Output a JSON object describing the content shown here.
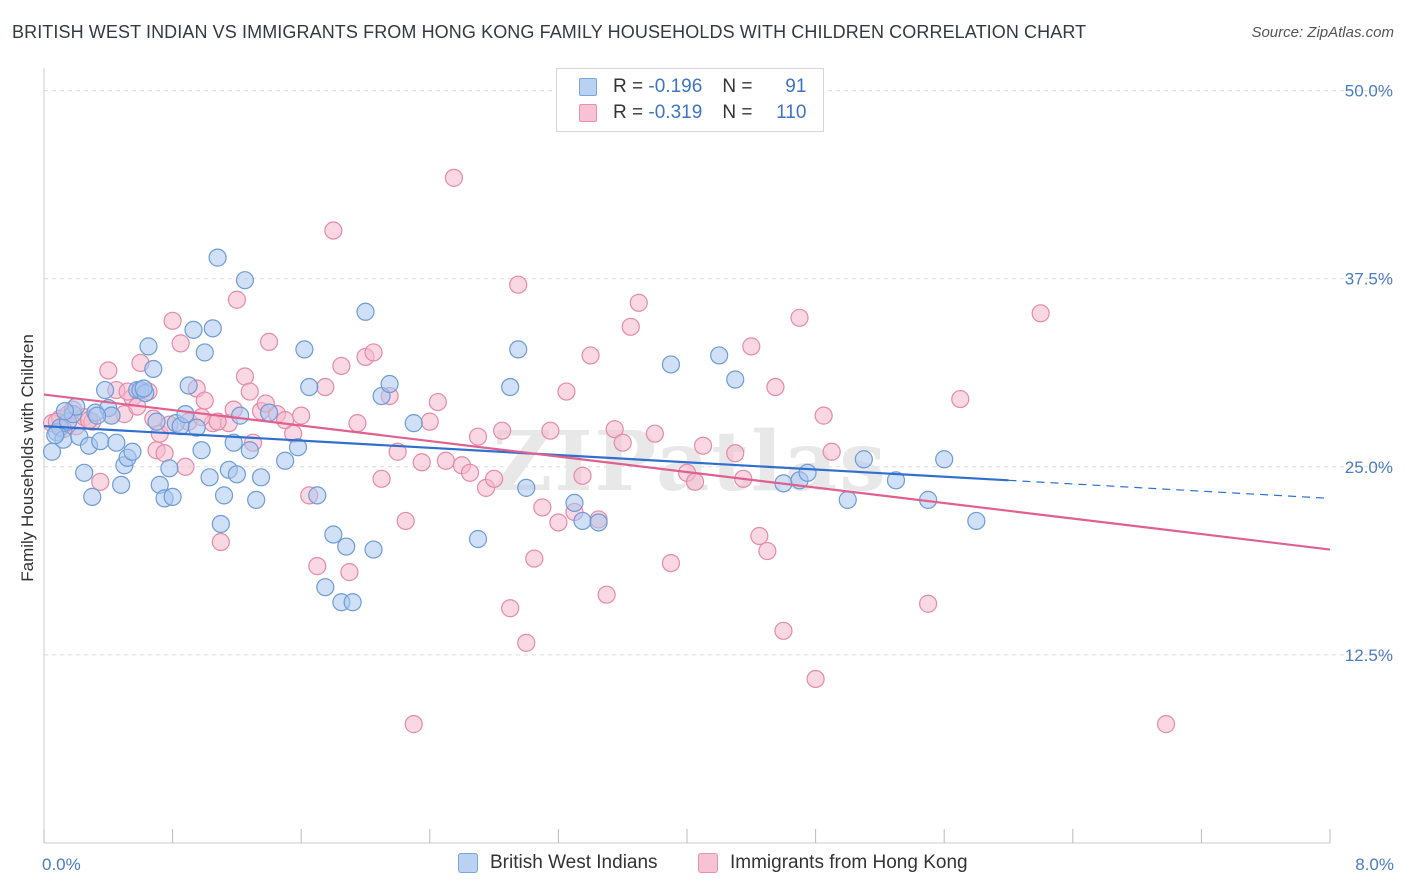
{
  "title": "BRITISH WEST INDIAN VS IMMIGRANTS FROM HONG KONG FAMILY HOUSEHOLDS WITH CHILDREN CORRELATION CHART",
  "source": "Source: ZipAtlas.com",
  "watermark": "ZIPatlas",
  "legend": {
    "rows": [
      {
        "r_label": "R =",
        "r_value": "-0.196",
        "n_label": "N =",
        "n_value": "91"
      },
      {
        "r_label": "R =",
        "r_value": "-0.319",
        "n_label": "N =",
        "n_value": "110"
      }
    ]
  },
  "bottom_legend": [
    "British West Indians",
    "Immigrants from Hong Kong"
  ],
  "colors": {
    "blue_fill": "#aac7ee",
    "blue_stroke": "#6f9bd6",
    "blue_line": "#2f6fcf",
    "pink_fill": "#f5b8cc",
    "pink_stroke": "#e58aa8",
    "pink_line": "#e0608f",
    "tick_text": "#4a7cc4",
    "grid": "#dcdcdc"
  },
  "chart_data": {
    "type": "scatter",
    "title": "BRITISH WEST INDIAN VS IMMIGRANTS FROM HONG KONG FAMILY HOUSEHOLDS WITH CHILDREN CORRELATION CHART",
    "xlabel": "",
    "ylabel": "Family Households with Children",
    "xlim": [
      0,
      8
    ],
    "ylim": [
      0,
      51.5
    ],
    "x_tick_labels": [
      "0.0%",
      "8.0%"
    ],
    "y_ticks": [
      12.5,
      25.0,
      37.5,
      50.0
    ],
    "y_tick_labels": [
      "12.5%",
      "25.0%",
      "37.5%",
      "50.0%"
    ],
    "grid": "horizontal dashed",
    "legend_position": "top-center",
    "series": [
      {
        "name": "British West Indians",
        "r": -0.196,
        "n": 91,
        "trend": {
          "x0": 0,
          "y0": 27.7,
          "x1": 6.0,
          "y1": 24.1,
          "dashed_to_x": 8.0,
          "dashed_to_y": 22.9
        },
        "points": [
          [
            0.05,
            26.0
          ],
          [
            0.08,
            27.3
          ],
          [
            0.1,
            27.6
          ],
          [
            0.12,
            26.8
          ],
          [
            0.15,
            28.0
          ],
          [
            0.18,
            28.5
          ],
          [
            0.2,
            29.0
          ],
          [
            0.22,
            27.0
          ],
          [
            0.25,
            24.6
          ],
          [
            0.28,
            26.4
          ],
          [
            0.3,
            23.0
          ],
          [
            0.32,
            28.6
          ],
          [
            0.35,
            26.7
          ],
          [
            0.38,
            30.1
          ],
          [
            0.4,
            28.9
          ],
          [
            0.42,
            28.4
          ],
          [
            0.45,
            26.6
          ],
          [
            0.48,
            23.8
          ],
          [
            0.5,
            25.1
          ],
          [
            0.52,
            25.6
          ],
          [
            0.55,
            26.0
          ],
          [
            0.58,
            30.1
          ],
          [
            0.6,
            30.1
          ],
          [
            0.63,
            29.9
          ],
          [
            0.65,
            33.0
          ],
          [
            0.68,
            31.5
          ],
          [
            0.7,
            28.0
          ],
          [
            0.72,
            23.8
          ],
          [
            0.75,
            22.9
          ],
          [
            0.78,
            24.9
          ],
          [
            0.8,
            23.0
          ],
          [
            0.82,
            27.9
          ],
          [
            0.85,
            27.7
          ],
          [
            0.88,
            28.5
          ],
          [
            0.9,
            30.4
          ],
          [
            0.93,
            34.1
          ],
          [
            0.95,
            27.6
          ],
          [
            0.98,
            26.1
          ],
          [
            1.0,
            32.6
          ],
          [
            1.03,
            24.3
          ],
          [
            1.05,
            34.2
          ],
          [
            1.08,
            38.9
          ],
          [
            1.1,
            21.2
          ],
          [
            1.12,
            23.1
          ],
          [
            1.15,
            24.8
          ],
          [
            1.18,
            26.6
          ],
          [
            1.2,
            24.5
          ],
          [
            1.25,
            37.4
          ],
          [
            1.28,
            26.1
          ],
          [
            1.32,
            22.8
          ],
          [
            1.35,
            24.3
          ],
          [
            1.5,
            25.4
          ],
          [
            1.58,
            26.3
          ],
          [
            1.62,
            32.8
          ],
          [
            1.65,
            30.3
          ],
          [
            1.7,
            23.1
          ],
          [
            1.75,
            17.0
          ],
          [
            1.8,
            20.5
          ],
          [
            1.85,
            16.0
          ],
          [
            1.88,
            19.7
          ],
          [
            1.92,
            16.0
          ],
          [
            2.0,
            35.3
          ],
          [
            2.05,
            19.5
          ],
          [
            2.1,
            29.7
          ],
          [
            2.15,
            30.5
          ],
          [
            2.3,
            27.9
          ],
          [
            2.7,
            20.2
          ],
          [
            2.9,
            30.3
          ],
          [
            2.95,
            32.8
          ],
          [
            3.0,
            23.6
          ],
          [
            3.3,
            22.6
          ],
          [
            3.35,
            21.4
          ],
          [
            3.45,
            21.3
          ],
          [
            3.9,
            31.8
          ],
          [
            4.2,
            32.4
          ],
          [
            4.3,
            30.8
          ],
          [
            4.6,
            23.9
          ],
          [
            4.7,
            24.1
          ],
          [
            4.75,
            24.6
          ],
          [
            5.0,
            22.8
          ],
          [
            5.1,
            25.5
          ],
          [
            5.3,
            24.1
          ],
          [
            5.5,
            22.8
          ],
          [
            5.6,
            25.5
          ],
          [
            5.8,
            21.4
          ],
          [
            0.07,
            27.1
          ],
          [
            0.13,
            28.7
          ],
          [
            0.62,
            30.2
          ],
          [
            1.22,
            28.4
          ],
          [
            0.33,
            28.4
          ],
          [
            1.4,
            28.6
          ]
        ]
      },
      {
        "name": "Immigrants from Hong Kong",
        "r": -0.319,
        "n": 110,
        "trend": {
          "x0": 0,
          "y0": 29.8,
          "x1": 8.0,
          "y1": 19.5
        },
        "points": [
          [
            0.05,
            27.9
          ],
          [
            0.1,
            28.2
          ],
          [
            0.15,
            28.5
          ],
          [
            0.2,
            27.7
          ],
          [
            0.25,
            28.3
          ],
          [
            0.3,
            28.0
          ],
          [
            0.35,
            24.0
          ],
          [
            0.4,
            31.4
          ],
          [
            0.45,
            30.1
          ],
          [
            0.5,
            28.5
          ],
          [
            0.55,
            29.6
          ],
          [
            0.6,
            31.9
          ],
          [
            0.65,
            30.0
          ],
          [
            0.7,
            26.1
          ],
          [
            0.75,
            25.9
          ],
          [
            0.8,
            34.7
          ],
          [
            0.85,
            33.2
          ],
          [
            0.9,
            28.0
          ],
          [
            0.95,
            30.2
          ],
          [
            1.0,
            29.4
          ],
          [
            1.05,
            27.9
          ],
          [
            1.1,
            20.0
          ],
          [
            1.15,
            27.9
          ],
          [
            1.2,
            36.1
          ],
          [
            1.25,
            31.0
          ],
          [
            1.3,
            26.6
          ],
          [
            1.35,
            28.7
          ],
          [
            1.4,
            33.3
          ],
          [
            1.45,
            28.5
          ],
          [
            1.5,
            28.1
          ],
          [
            1.55,
            27.2
          ],
          [
            1.6,
            28.4
          ],
          [
            1.65,
            23.1
          ],
          [
            1.7,
            18.4
          ],
          [
            1.75,
            30.3
          ],
          [
            1.8,
            40.7
          ],
          [
            1.85,
            31.7
          ],
          [
            1.9,
            18.0
          ],
          [
            1.95,
            27.9
          ],
          [
            2.0,
            32.3
          ],
          [
            2.05,
            32.6
          ],
          [
            2.1,
            24.2
          ],
          [
            2.15,
            29.7
          ],
          [
            2.2,
            26.0
          ],
          [
            2.25,
            21.4
          ],
          [
            2.3,
            7.9
          ],
          [
            2.35,
            25.3
          ],
          [
            2.4,
            28.0
          ],
          [
            2.45,
            29.3
          ],
          [
            2.5,
            25.4
          ],
          [
            2.55,
            44.2
          ],
          [
            2.6,
            25.1
          ],
          [
            2.65,
            24.6
          ],
          [
            2.7,
            27.0
          ],
          [
            2.75,
            23.6
          ],
          [
            2.8,
            24.2
          ],
          [
            2.85,
            27.4
          ],
          [
            2.9,
            15.6
          ],
          [
            2.95,
            37.1
          ],
          [
            3.0,
            13.3
          ],
          [
            3.05,
            18.9
          ],
          [
            3.1,
            22.3
          ],
          [
            3.15,
            27.4
          ],
          [
            3.2,
            21.3
          ],
          [
            3.25,
            30.0
          ],
          [
            3.3,
            22.0
          ],
          [
            3.35,
            24.4
          ],
          [
            3.4,
            32.4
          ],
          [
            3.45,
            21.5
          ],
          [
            3.5,
            16.5
          ],
          [
            3.55,
            27.5
          ],
          [
            3.6,
            26.6
          ],
          [
            3.65,
            34.3
          ],
          [
            3.7,
            35.9
          ],
          [
            3.8,
            27.2
          ],
          [
            3.9,
            18.6
          ],
          [
            4.0,
            24.6
          ],
          [
            4.05,
            24.0
          ],
          [
            4.1,
            26.4
          ],
          [
            4.3,
            25.9
          ],
          [
            4.35,
            24.2
          ],
          [
            4.4,
            33.0
          ],
          [
            4.45,
            20.4
          ],
          [
            4.5,
            19.4
          ],
          [
            4.55,
            30.3
          ],
          [
            4.6,
            14.1
          ],
          [
            4.7,
            34.9
          ],
          [
            4.8,
            10.9
          ],
          [
            4.85,
            28.4
          ],
          [
            4.9,
            26.0
          ],
          [
            5.5,
            15.9
          ],
          [
            5.7,
            29.5
          ],
          [
            6.2,
            35.2
          ],
          [
            6.98,
            7.9
          ],
          [
            0.08,
            28.0
          ],
          [
            0.12,
            27.5
          ],
          [
            0.18,
            28.8
          ],
          [
            0.28,
            28.1
          ],
          [
            0.42,
            28.4
          ],
          [
            0.52,
            30.0
          ],
          [
            0.58,
            29.0
          ],
          [
            0.68,
            28.2
          ],
          [
            0.72,
            27.2
          ],
          [
            0.78,
            27.8
          ],
          [
            0.88,
            25.0
          ],
          [
            0.98,
            28.3
          ],
          [
            1.08,
            28.0
          ],
          [
            1.18,
            28.8
          ],
          [
            1.28,
            30.0
          ],
          [
            1.38,
            29.2
          ]
        ]
      }
    ]
  }
}
